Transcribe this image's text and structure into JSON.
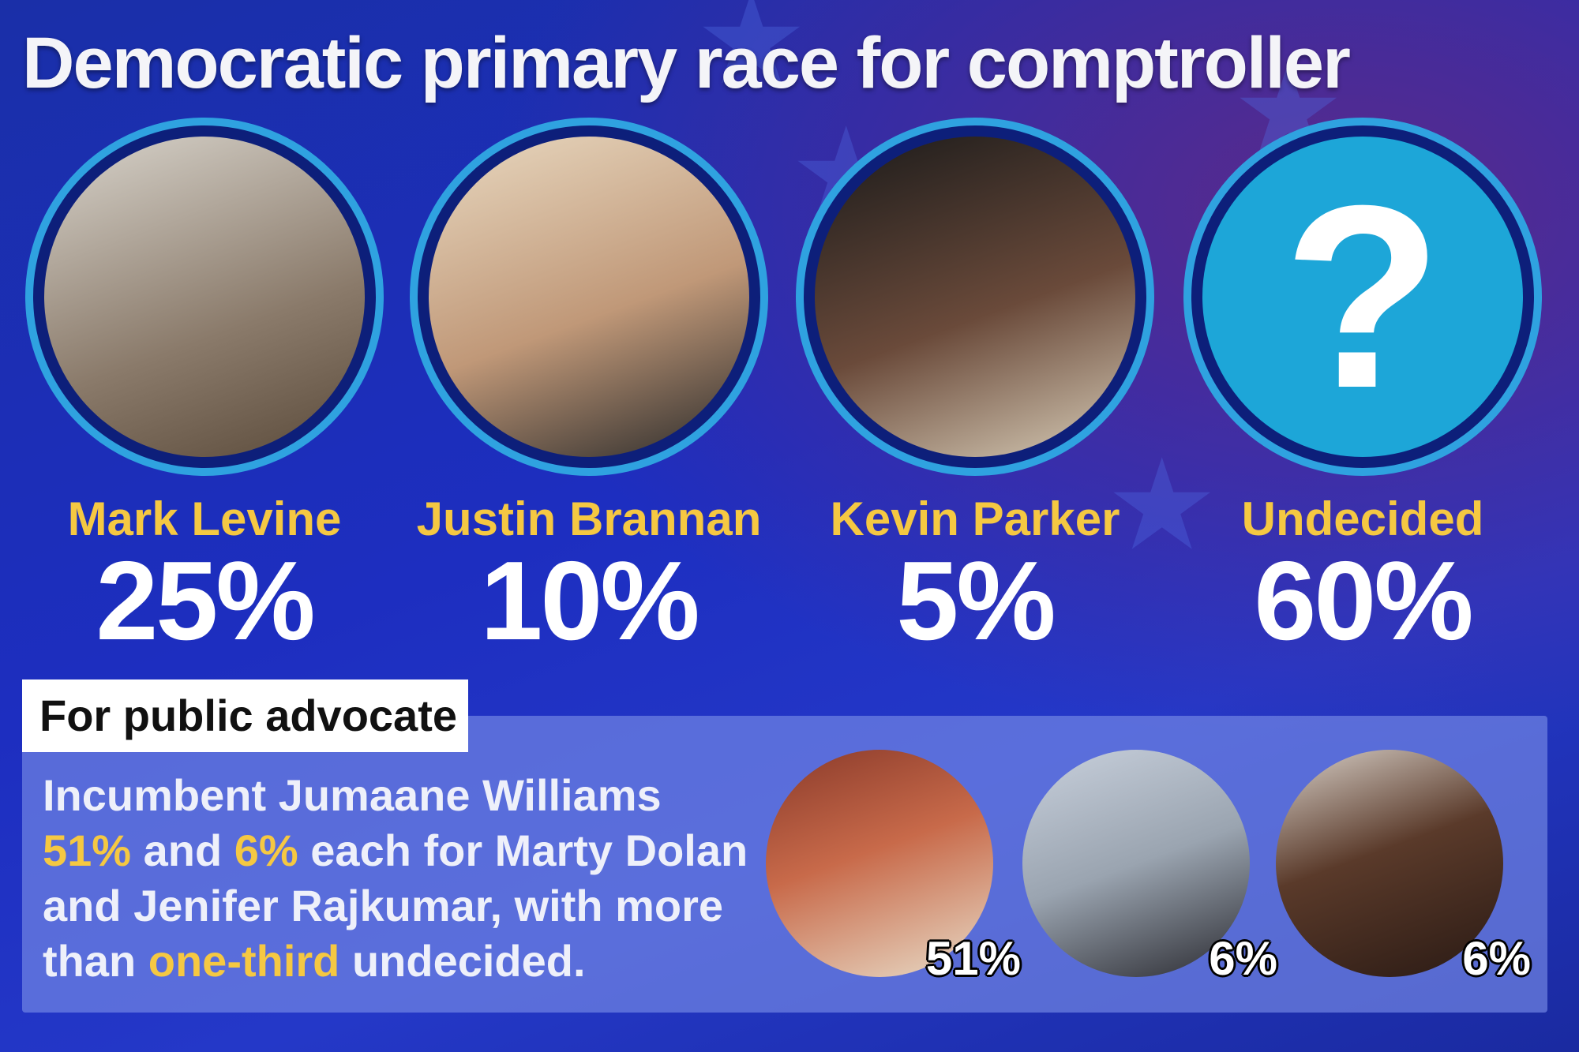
{
  "title": "Democratic primary race for comptroller",
  "candidates": [
    {
      "name": "Mark Levine",
      "percent": "25%"
    },
    {
      "name": "Justin Brannan",
      "percent": "10%"
    },
    {
      "name": "Kevin Parker",
      "percent": "5%"
    },
    {
      "name": "Undecided",
      "percent": "60%",
      "image_text": "?"
    }
  ],
  "public_advocate": {
    "label": "For public advocate",
    "lines": [
      [
        {
          "text": "Incumbent Jumaane Williams"
        }
      ],
      [
        {
          "text": "51%",
          "highlight": true
        },
        {
          "text": " and "
        },
        {
          "text": "6%",
          "highlight": true
        },
        {
          "text": " each for Marty Dolan"
        }
      ],
      [
        {
          "text": "and Jenifer Rajkumar, with more"
        }
      ],
      [
        {
          "text": "than "
        },
        {
          "text": "one-third",
          "highlight": true
        },
        {
          "text": " undecided."
        }
      ]
    ],
    "candidates": [
      {
        "percent": "51%"
      },
      {
        "percent": "6%"
      },
      {
        "percent": "6%"
      }
    ]
  }
}
